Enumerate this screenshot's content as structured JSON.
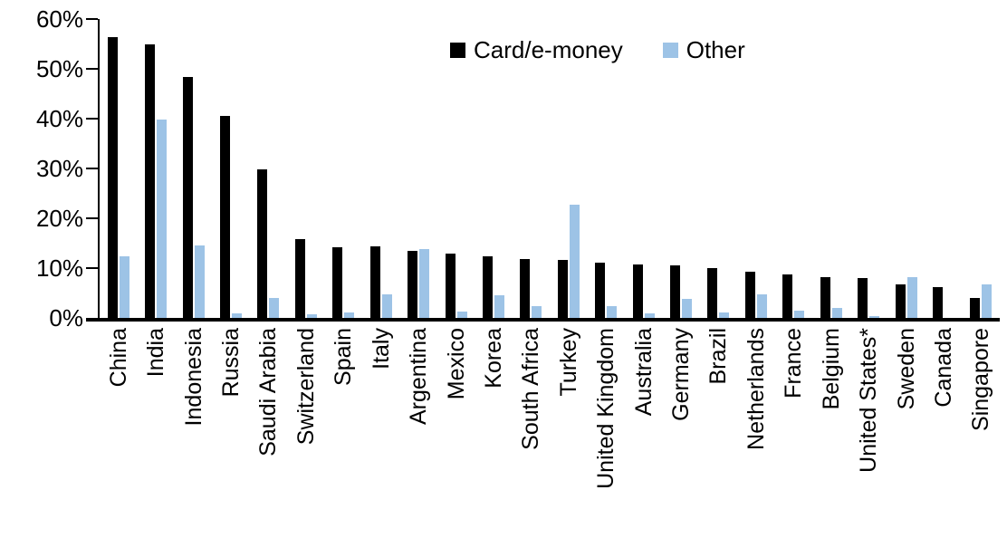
{
  "chart_data": {
    "type": "bar",
    "title": "",
    "categories": [
      "China",
      "India",
      "Indonesia",
      "Russia",
      "Saudi Arabia",
      "Switzerland",
      "Spain",
      "Italy",
      "Argentina",
      "Mexico",
      "Korea",
      "South Africa",
      "Turkey",
      "United Kingdom",
      "Australia",
      "Germany",
      "Brazil",
      "Netherlands",
      "France",
      "Belgium",
      "United States*",
      "Sweden",
      "Canada",
      "Singapore"
    ],
    "series": [
      {
        "name": "Card/e-money",
        "color": "#000000",
        "values": [
          56.3,
          55.0,
          48.3,
          40.5,
          29.8,
          15.8,
          14.1,
          14.3,
          13.5,
          13.0,
          12.3,
          11.8,
          11.6,
          11.1,
          10.8,
          10.6,
          10.0,
          9.3,
          8.7,
          8.2,
          8.0,
          6.7,
          6.1,
          4.0
        ]
      },
      {
        "name": "Other",
        "color": "#9DC3E6",
        "values": [
          12.3,
          39.8,
          14.5,
          0.9,
          4.0,
          0.8,
          1.1,
          4.8,
          13.9,
          1.3,
          4.6,
          2.4,
          22.7,
          2.3,
          1.0,
          3.9,
          1.1,
          4.8,
          1.5,
          2.0,
          0.3,
          8.2,
          0.0,
          6.8
        ]
      }
    ],
    "y_axis": {
      "tick_labels": [
        "0%",
        "10%",
        "20%",
        "30%",
        "40%",
        "50%",
        "60%"
      ],
      "min": 0,
      "max": 60,
      "unit": "%"
    },
    "x_axis": {
      "label_rotation_degrees": 90
    },
    "legend_position": "top-center",
    "grid": false
  }
}
